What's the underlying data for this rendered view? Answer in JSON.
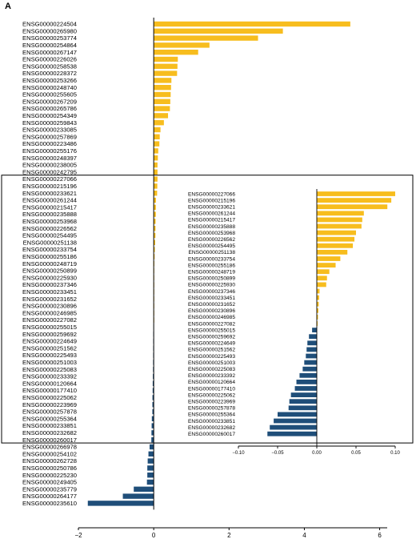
{
  "figure": {
    "panel_label": "A"
  },
  "colors": {
    "positive": "#f7bd1e",
    "negative": "#1f4e79",
    "axis": "#000000"
  },
  "chart_data": [
    {
      "type": "bar",
      "orientation": "horizontal",
      "title": "",
      "xlabel": "",
      "ylabel": "",
      "xlim": [
        -2,
        6.2
      ],
      "xticks": [
        -2,
        0,
        2,
        4,
        6
      ],
      "grid": false,
      "categories": [
        "ENSG00000224504",
        "ENSG00000265980",
        "ENSG00000253774",
        "ENSG00000254864",
        "ENSG00000267147",
        "ENSG00000226026",
        "ENSG00000258538",
        "ENSG00000228372",
        "ENSG00000253266",
        "ENSG00000248740",
        "ENSG00000255605",
        "ENSG00000267209",
        "ENSG00000265786",
        "ENSG00000254349",
        "ENSG00000259843",
        "ENSG00000233085",
        "ENSG00000257869",
        "ENSG00000223486",
        "ENSG00000255176",
        "ENSG00000248397",
        "ENSG00000238005",
        "ENSG00000242795",
        "ENSG00000227066",
        "ENSG00000215196",
        "ENSG00000233621",
        "ENSG00000261244",
        "ENSG00000215417",
        "ENSG00000235888",
        "ENSG00000253968",
        "ENSG00000226562",
        "ENSG00000254495",
        "ENSG00000251138",
        "ENSG00000233754",
        "ENSG00000255186",
        "ENSG00000248719",
        "ENSG00000250899",
        "ENSG00000225930",
        "ENSG00000237346",
        "ENSG00000233451",
        "ENSG00000231652",
        "ENSG00000230896",
        "ENSG00000246985",
        "ENSG00000227082",
        "ENSG00000255015",
        "ENSG00000259692",
        "ENSG00000224649",
        "ENSG00000251562",
        "ENSG00000225493",
        "ENSG00000251003",
        "ENSG00000225083",
        "ENSG00000233392",
        "ENSG00000120664",
        "ENSG00000177410",
        "ENSG00000225062",
        "ENSG00000223969",
        "ENSG00000257878",
        "ENSG00000255364",
        "ENSG00000233851",
        "ENSG00000232682",
        "ENSG00000260017",
        "ENSG00000266978",
        "ENSG00000254102",
        "ENSG00000262728",
        "ENSG00000250786",
        "ENSG00000225230",
        "ENSG00000249405",
        "ENSG00000235779",
        "ENSG00000264177",
        "ENSG00000235610"
      ],
      "values": [
        5.22,
        3.43,
        2.77,
        1.48,
        1.18,
        0.64,
        0.63,
        0.62,
        0.47,
        0.46,
        0.45,
        0.44,
        0.43,
        0.38,
        0.27,
        0.18,
        0.16,
        0.15,
        0.12,
        0.11,
        0.1,
        0.1,
        0.1,
        0.095,
        0.09,
        0.06,
        0.058,
        0.057,
        0.05,
        0.048,
        0.046,
        0.039,
        0.03,
        0.024,
        0.016,
        0.013,
        0.012,
        0.0035,
        0.003,
        0.0025,
        0.002,
        0.0015,
        0.001,
        -0.006,
        -0.01,
        -0.012,
        -0.013,
        -0.014,
        -0.016,
        -0.018,
        -0.022,
        -0.026,
        -0.028,
        -0.033,
        -0.035,
        -0.036,
        -0.05,
        -0.055,
        -0.06,
        -0.063,
        -0.11,
        -0.14,
        -0.16,
        -0.17,
        -0.17,
        -0.18,
        -0.53,
        -0.82,
        -1.75
      ],
      "highlight_box": {
        "from_category": "ENSG00000227066",
        "to_category": "ENSG00000260017"
      }
    },
    {
      "type": "bar",
      "orientation": "horizontal",
      "title": "",
      "xlabel": "",
      "ylabel": "",
      "xlim": [
        -0.1,
        0.1
      ],
      "xticks": [
        -0.1,
        -0.05,
        0.0,
        0.05,
        0.1
      ],
      "xtick_labels": [
        "−0.10",
        "−0.05",
        "0.00",
        "0.05",
        "0.10"
      ],
      "grid": false,
      "inset": true,
      "categories": [
        "ENSG00000227066",
        "ENSG00000215196",
        "ENSG00000233621",
        "ENSG00000261244",
        "ENSG00000215417",
        "ENSG00000235888",
        "ENSG00000253968",
        "ENSG00000226562",
        "ENSG00000254495",
        "ENSG00000251138",
        "ENSG00000233754",
        "ENSG00000255186",
        "ENSG00000248719",
        "ENSG00000250899",
        "ENSG00000225930",
        "ENSG00000237346",
        "ENSG00000233451",
        "ENSG00000231652",
        "ENSG00000230896",
        "ENSG00000246985",
        "ENSG00000227082",
        "ENSG00000255015",
        "ENSG00000259692",
        "ENSG00000224649",
        "ENSG00000251562",
        "ENSG00000225493",
        "ENSG00000251003",
        "ENSG00000225083",
        "ENSG00000233392",
        "ENSG00000120664",
        "ENSG00000177410",
        "ENSG00000225062",
        "ENSG00000223969",
        "ENSG00000257878",
        "ENSG00000255364",
        "ENSG00000233851",
        "ENSG00000232682",
        "ENSG00000260017"
      ],
      "values": [
        0.1,
        0.095,
        0.09,
        0.06,
        0.058,
        0.057,
        0.05,
        0.048,
        0.046,
        0.039,
        0.03,
        0.024,
        0.016,
        0.013,
        0.012,
        0.0035,
        0.003,
        0.0025,
        0.002,
        0.0015,
        0.001,
        -0.006,
        -0.01,
        -0.012,
        -0.013,
        -0.014,
        -0.016,
        -0.018,
        -0.022,
        -0.026,
        -0.028,
        -0.033,
        -0.035,
        -0.036,
        -0.05,
        -0.055,
        -0.06,
        -0.063
      ]
    }
  ]
}
